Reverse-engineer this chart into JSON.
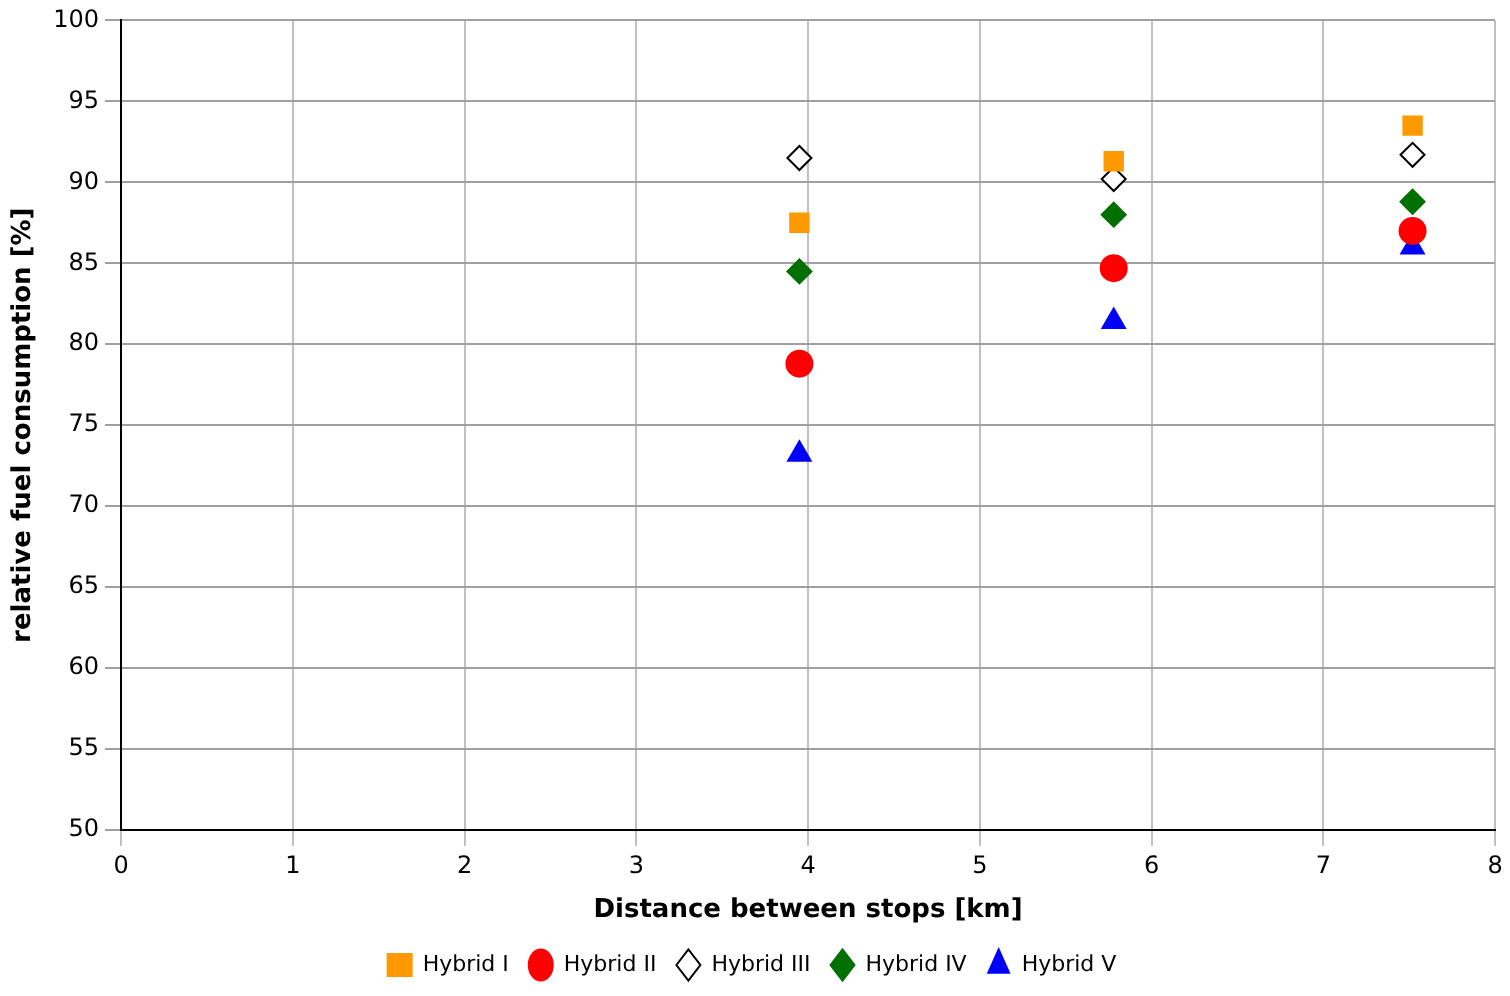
{
  "chart_data": {
    "type": "scatter",
    "xlabel": "Distance between stops [km]",
    "ylabel": "relative fuel consumption [%]",
    "xlim": [
      0,
      8
    ],
    "xticks": [
      0,
      1,
      2,
      3,
      4,
      5,
      6,
      7,
      8
    ],
    "ylim": [
      50,
      100
    ],
    "yticks": [
      50,
      55,
      60,
      65,
      70,
      75,
      80,
      85,
      90,
      95,
      100
    ],
    "grid": true,
    "legend": "bottom",
    "series": [
      {
        "name": "Hybrid I",
        "color": "#ff9900",
        "marker": "square",
        "x": [
          3.95,
          5.78,
          7.52
        ],
        "values": [
          87.5,
          91.3,
          93.5
        ]
      },
      {
        "name": "Hybrid II",
        "color": "#ff0000",
        "marker": "circle",
        "x": [
          3.95,
          5.78,
          7.52
        ],
        "values": [
          78.8,
          84.7,
          87.0
        ]
      },
      {
        "name": "Hybrid III",
        "color": "#ffffff",
        "marker": "diamond",
        "x": [
          3.95,
          5.78,
          7.52
        ],
        "values": [
          91.5,
          90.2,
          91.7
        ]
      },
      {
        "name": "Hybrid IV",
        "color": "#007000",
        "marker": "diamond",
        "x": [
          3.95,
          5.78,
          7.52
        ],
        "values": [
          84.5,
          88.0,
          88.8
        ]
      },
      {
        "name": "Hybrid V",
        "color": "#0000ff",
        "marker": "triangle",
        "x": [
          3.95,
          5.78,
          7.52
        ],
        "values": [
          73.2,
          81.4,
          86.0
        ]
      }
    ]
  }
}
